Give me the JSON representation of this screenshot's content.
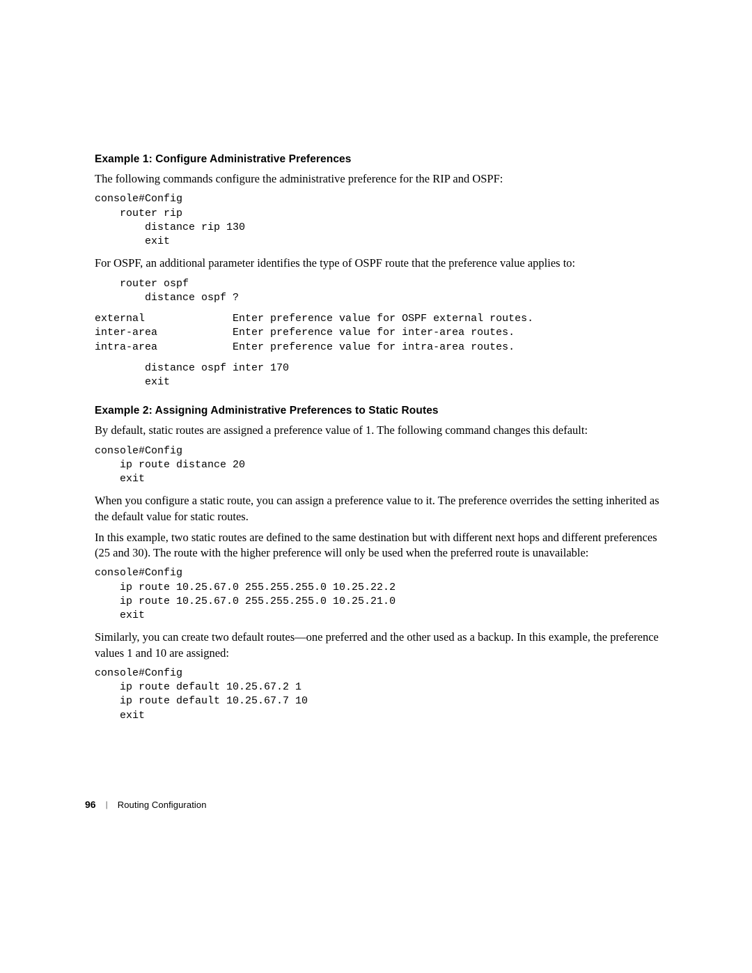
{
  "example1": {
    "heading": "Example 1: Configure Administrative Preferences",
    "intro": "The following commands configure the administrative preference for the RIP and OSPF:",
    "code1_l1": "console#Config",
    "code1_l2": "router rip",
    "code1_l3": "distance rip 130",
    "code1_l4": "exit",
    "ospf_intro": "For OSPF, an additional parameter identifies the type of OSPF route that the preference value applies to:",
    "code2_l1": "router ospf",
    "code2_l2": "distance ospf ?",
    "help_l1": "external              Enter preference value for OSPF external routes.",
    "help_l2": "inter-area            Enter preference value for inter-area routes.",
    "help_l3": "intra-area            Enter preference value for intra-area routes.",
    "code3_l1": "distance ospf inter 170",
    "code3_l2": "exit"
  },
  "example2": {
    "heading": "Example 2: Assigning Administrative Preferences to Static Routes",
    "p1": "By default, static routes are assigned a preference value of 1. The following command changes this default:",
    "code1_l1": "console#Config",
    "code1_l2": "ip route distance 20",
    "code1_l3": "exit",
    "p2": "When you configure a static route, you can assign a preference value to it. The preference overrides the setting inherited as the default value for static routes.",
    "p3": "In this example, two static routes are defined to the same destination but with different next hops and different preferences (25 and 30). The route with the higher preference will only be used when the preferred route is unavailable:",
    "code2_l1": "console#Config",
    "code2_l2": "ip route 10.25.67.0 255.255.255.0 10.25.22.2",
    "code2_l3": "ip route 10.25.67.0 255.255.255.0 10.25.21.0",
    "code2_l4": "exit",
    "p4": "Similarly, you can create two default routes—one preferred and the other used as a backup. In this example, the preference values 1 and 10 are assigned:",
    "code3_l1": "console#Config",
    "code3_l2": "ip route default 10.25.67.2 1",
    "code3_l3": "ip route default 10.25.67.7 10",
    "code3_l4": "exit"
  },
  "footer": {
    "page_number": "96",
    "divider": "|",
    "chapter": "Routing Configuration"
  }
}
